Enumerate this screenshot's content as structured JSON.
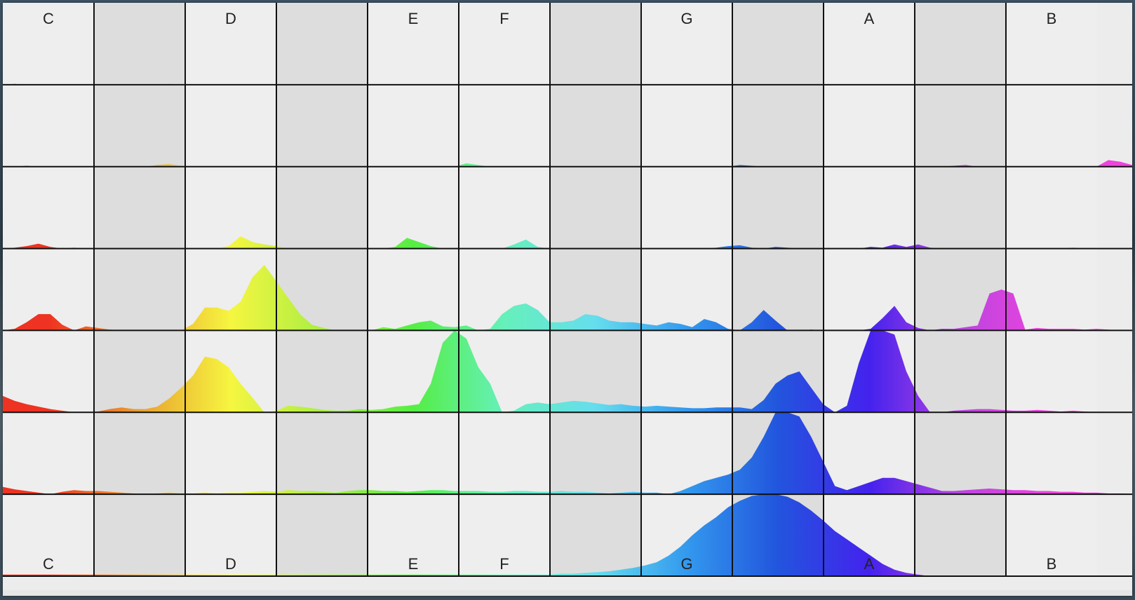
{
  "app": {
    "colors": {
      "natural_col_bg": "#eeeeee",
      "accidental_col_bg": "#dddddd",
      "grid_line": "#111111",
      "label_text": "#222222"
    },
    "columns": [
      {
        "label": "C",
        "accidental": false,
        "color": "#ee3322"
      },
      {
        "label": "",
        "accidental": true,
        "color": "#e8a030"
      },
      {
        "label": "D",
        "accidental": false,
        "color": "#f6f640"
      },
      {
        "label": "",
        "accidental": true,
        "color": "#aaee44"
      },
      {
        "label": "E",
        "accidental": false,
        "color": "#55ee44"
      },
      {
        "label": "F",
        "accidental": false,
        "color": "#66f0bb"
      },
      {
        "label": "",
        "accidental": true,
        "color": "#66ddee"
      },
      {
        "label": "G",
        "accidental": false,
        "color": "#3399ee"
      },
      {
        "label": "",
        "accidental": true,
        "color": "#2255dd"
      },
      {
        "label": "A",
        "accidental": false,
        "color": "#4422ee"
      },
      {
        "label": "",
        "accidental": true,
        "color": "#bb44e0"
      },
      {
        "label": "B",
        "accidental": false,
        "color": "#ee44dd"
      }
    ],
    "top_labels": [
      "C",
      "D",
      "E",
      "F",
      "G",
      "A",
      "B"
    ],
    "bottom_labels": [
      "C",
      "D",
      "E",
      "F",
      "G",
      "A",
      "B"
    ],
    "rows": 7,
    "spectra": [
      {
        "row": 0,
        "levels": [
          0.0,
          0.01,
          0.0,
          0.0,
          0.0,
          0.0,
          0.0,
          0.0,
          0.0,
          0.0,
          0.0,
          0.0,
          0.0,
          0.0,
          0.01,
          0.0,
          0.0,
          0.0,
          0.0,
          0.0,
          0.0,
          0.0,
          0.0,
          0.0,
          0.0,
          0.0,
          0.0,
          0.0,
          0.0,
          0.0,
          0.0,
          0.0,
          0.0,
          0.0,
          0.0,
          0.0,
          0.0,
          0.0,
          0.0,
          0.0,
          0.0,
          0.0,
          0.0,
          0.0,
          0.0,
          0.0,
          0.0,
          0.0,
          0.0,
          0.0,
          0.0,
          0.0,
          0.0,
          0.0,
          0.0,
          0.0,
          0.0,
          0.0,
          0.0,
          0.0,
          0.0,
          0.0,
          0.0,
          0.0,
          0.0,
          0.0,
          0.0,
          0.0,
          0.0,
          0.0,
          0.0,
          0.0,
          0.0,
          0.0,
          0.0,
          0.0,
          0.0,
          0.0,
          0.0,
          0.0,
          0.0,
          0.0,
          0.0,
          0.0,
          0.0,
          0.0,
          0.0,
          0.0,
          0.0,
          0.0,
          0.0,
          0.0,
          0.0,
          0.0,
          0.0,
          0.0
        ]
      },
      {
        "row": 1,
        "levels": [
          0.0,
          0.0,
          0.01,
          0.0,
          0.0,
          0.0,
          0.0,
          0.0,
          0.0,
          0.0,
          0.0,
          0.0,
          0.0,
          0.02,
          0.03,
          0.01,
          0.0,
          0.0,
          0.0,
          0.0,
          0.01,
          0.0,
          0.0,
          0.0,
          0.0,
          0.0,
          0.0,
          0.0,
          0.0,
          0.0,
          0.0,
          0.0,
          0.0,
          0.0,
          0.0,
          0.0,
          0.0,
          0.0,
          0.0,
          0.04,
          0.02,
          0.0,
          0.0,
          0.0,
          0.0,
          0.0,
          0.0,
          0.0,
          0.0,
          0.0,
          0.0,
          0.0,
          0.0,
          0.0,
          0.0,
          0.0,
          0.0,
          0.0,
          0.0,
          0.0,
          0.0,
          0.0,
          0.02,
          0.01,
          0.0,
          0.0,
          0.0,
          0.0,
          0.0,
          0.0,
          0.0,
          0.0,
          0.0,
          0.0,
          0.0,
          0.0,
          0.0,
          0.0,
          0.0,
          0.0,
          0.01,
          0.02,
          0.0,
          0.0,
          0.0,
          0.0,
          0.0,
          0.0,
          0.0,
          0.0,
          0.0,
          0.0,
          0.0,
          0.08,
          0.06,
          0.02
        ]
      },
      {
        "row": 2,
        "levels": [
          0.0,
          0.01,
          0.03,
          0.06,
          0.02,
          0.0,
          0.01,
          0.0,
          0.0,
          0.0,
          0.0,
          0.0,
          0.0,
          0.0,
          0.0,
          0.0,
          0.0,
          0.0,
          0.0,
          0.03,
          0.15,
          0.08,
          0.05,
          0.03,
          0.0,
          0.0,
          0.0,
          0.0,
          0.0,
          0.0,
          0.0,
          0.0,
          0.0,
          0.02,
          0.13,
          0.08,
          0.03,
          0.0,
          0.0,
          0.0,
          0.0,
          0.0,
          0.0,
          0.05,
          0.11,
          0.02,
          0.0,
          0.0,
          0.0,
          0.0,
          0.0,
          0.0,
          0.0,
          0.0,
          0.0,
          0.0,
          0.0,
          0.0,
          0.0,
          0.0,
          0.01,
          0.03,
          0.04,
          0.01,
          0.0,
          0.02,
          0.01,
          0.0,
          0.0,
          0.0,
          0.0,
          0.0,
          0.0,
          0.02,
          0.01,
          0.05,
          0.02,
          0.05,
          0.01,
          0.0,
          0.0,
          0.0,
          0.0,
          0.0,
          0.0,
          0.0,
          0.0,
          0.0,
          0.0,
          0.0,
          0.01,
          0.0,
          0.0,
          0.0,
          0.0,
          0.0
        ]
      },
      {
        "row": 3,
        "levels": [
          0.0,
          0.02,
          0.1,
          0.2,
          0.2,
          0.07,
          0.0,
          0.05,
          0.03,
          0.01,
          0.0,
          0.0,
          0.0,
          0.0,
          0.0,
          0.0,
          0.08,
          0.28,
          0.28,
          0.24,
          0.35,
          0.65,
          0.8,
          0.6,
          0.4,
          0.2,
          0.07,
          0.03,
          0.0,
          0.0,
          0.0,
          0.0,
          0.04,
          0.02,
          0.06,
          0.1,
          0.12,
          0.05,
          0.04,
          0.06,
          0.0,
          0.02,
          0.2,
          0.3,
          0.33,
          0.25,
          0.1,
          0.1,
          0.12,
          0.2,
          0.18,
          0.12,
          0.1,
          0.1,
          0.08,
          0.06,
          0.1,
          0.08,
          0.04,
          0.14,
          0.1,
          0.02,
          0.0,
          0.1,
          0.25,
          0.12,
          0.0,
          0.0,
          0.01,
          0.0,
          0.0,
          0.0,
          0.0,
          0.02,
          0.15,
          0.3,
          0.1,
          0.03,
          0.0,
          0.02,
          0.02,
          0.04,
          0.06,
          0.45,
          0.5,
          0.45,
          0.01,
          0.03,
          0.02,
          0.02,
          0.02,
          0.01,
          0.02,
          0.01,
          0.0,
          0.0
        ]
      },
      {
        "row": 4,
        "levels": [
          0.2,
          0.14,
          0.1,
          0.07,
          0.04,
          0.02,
          0.0,
          0.0,
          0.01,
          0.04,
          0.06,
          0.04,
          0.04,
          0.07,
          0.17,
          0.3,
          0.45,
          0.68,
          0.65,
          0.55,
          0.35,
          0.18,
          0.0,
          0.02,
          0.08,
          0.07,
          0.05,
          0.03,
          0.02,
          0.02,
          0.04,
          0.03,
          0.04,
          0.07,
          0.08,
          0.1,
          0.35,
          0.85,
          1.0,
          0.9,
          0.55,
          0.35,
          0.0,
          0.02,
          0.1,
          0.12,
          0.1,
          0.12,
          0.14,
          0.13,
          0.11,
          0.09,
          0.1,
          0.08,
          0.07,
          0.08,
          0.07,
          0.06,
          0.05,
          0.05,
          0.06,
          0.06,
          0.06,
          0.04,
          0.15,
          0.35,
          0.45,
          0.5,
          0.3,
          0.1,
          0.0,
          0.08,
          0.6,
          1.0,
          1.0,
          0.95,
          0.5,
          0.2,
          0.0,
          0.0,
          0.02,
          0.03,
          0.04,
          0.04,
          0.03,
          0.02,
          0.02,
          0.03,
          0.02,
          0.01,
          0.02,
          0.01,
          0.0,
          0.0,
          0.0,
          0.0
        ]
      },
      {
        "row": 5,
        "levels": [
          0.09,
          0.06,
          0.04,
          0.02,
          0.0,
          0.03,
          0.05,
          0.04,
          0.04,
          0.03,
          0.02,
          0.01,
          0.0,
          0.01,
          0.02,
          0.01,
          0.01,
          0.02,
          0.01,
          0.02,
          0.02,
          0.03,
          0.04,
          0.03,
          0.05,
          0.04,
          0.04,
          0.03,
          0.02,
          0.04,
          0.05,
          0.05,
          0.04,
          0.04,
          0.03,
          0.04,
          0.05,
          0.05,
          0.04,
          0.04,
          0.04,
          0.03,
          0.03,
          0.04,
          0.04,
          0.03,
          0.03,
          0.04,
          0.03,
          0.03,
          0.02,
          0.01,
          0.02,
          0.03,
          0.02,
          0.02,
          0.0,
          0.04,
          0.1,
          0.16,
          0.2,
          0.24,
          0.3,
          0.45,
          0.7,
          1.0,
          1.0,
          0.95,
          0.7,
          0.4,
          0.1,
          0.05,
          0.1,
          0.15,
          0.2,
          0.2,
          0.16,
          0.12,
          0.08,
          0.04,
          0.04,
          0.05,
          0.06,
          0.07,
          0.06,
          0.05,
          0.05,
          0.04,
          0.04,
          0.03,
          0.03,
          0.02,
          0.02,
          0.01,
          0.01,
          0.0
        ]
      },
      {
        "row": 6,
        "levels": [
          0.02,
          0.02,
          0.02,
          0.02,
          0.02,
          0.02,
          0.02,
          0.02,
          0.02,
          0.02,
          0.02,
          0.02,
          0.02,
          0.02,
          0.02,
          0.02,
          0.02,
          0.02,
          0.02,
          0.02,
          0.02,
          0.02,
          0.02,
          0.02,
          0.02,
          0.02,
          0.02,
          0.02,
          0.02,
          0.02,
          0.02,
          0.02,
          0.02,
          0.02,
          0.02,
          0.02,
          0.02,
          0.02,
          0.02,
          0.02,
          0.02,
          0.02,
          0.02,
          0.02,
          0.02,
          0.02,
          0.02,
          0.03,
          0.03,
          0.04,
          0.05,
          0.06,
          0.08,
          0.1,
          0.13,
          0.17,
          0.25,
          0.36,
          0.5,
          0.62,
          0.72,
          0.84,
          0.92,
          0.98,
          1.0,
          1.0,
          0.97,
          0.9,
          0.8,
          0.68,
          0.55,
          0.45,
          0.35,
          0.25,
          0.15,
          0.08,
          0.04,
          0.02,
          0.0,
          0.0,
          0.0,
          0.0,
          0.0,
          0.0,
          0.0,
          0.0,
          0.0,
          0.0,
          0.0,
          0.0,
          0.0,
          0.0,
          0.0,
          0.0,
          0.0,
          0.0
        ]
      }
    ]
  }
}
